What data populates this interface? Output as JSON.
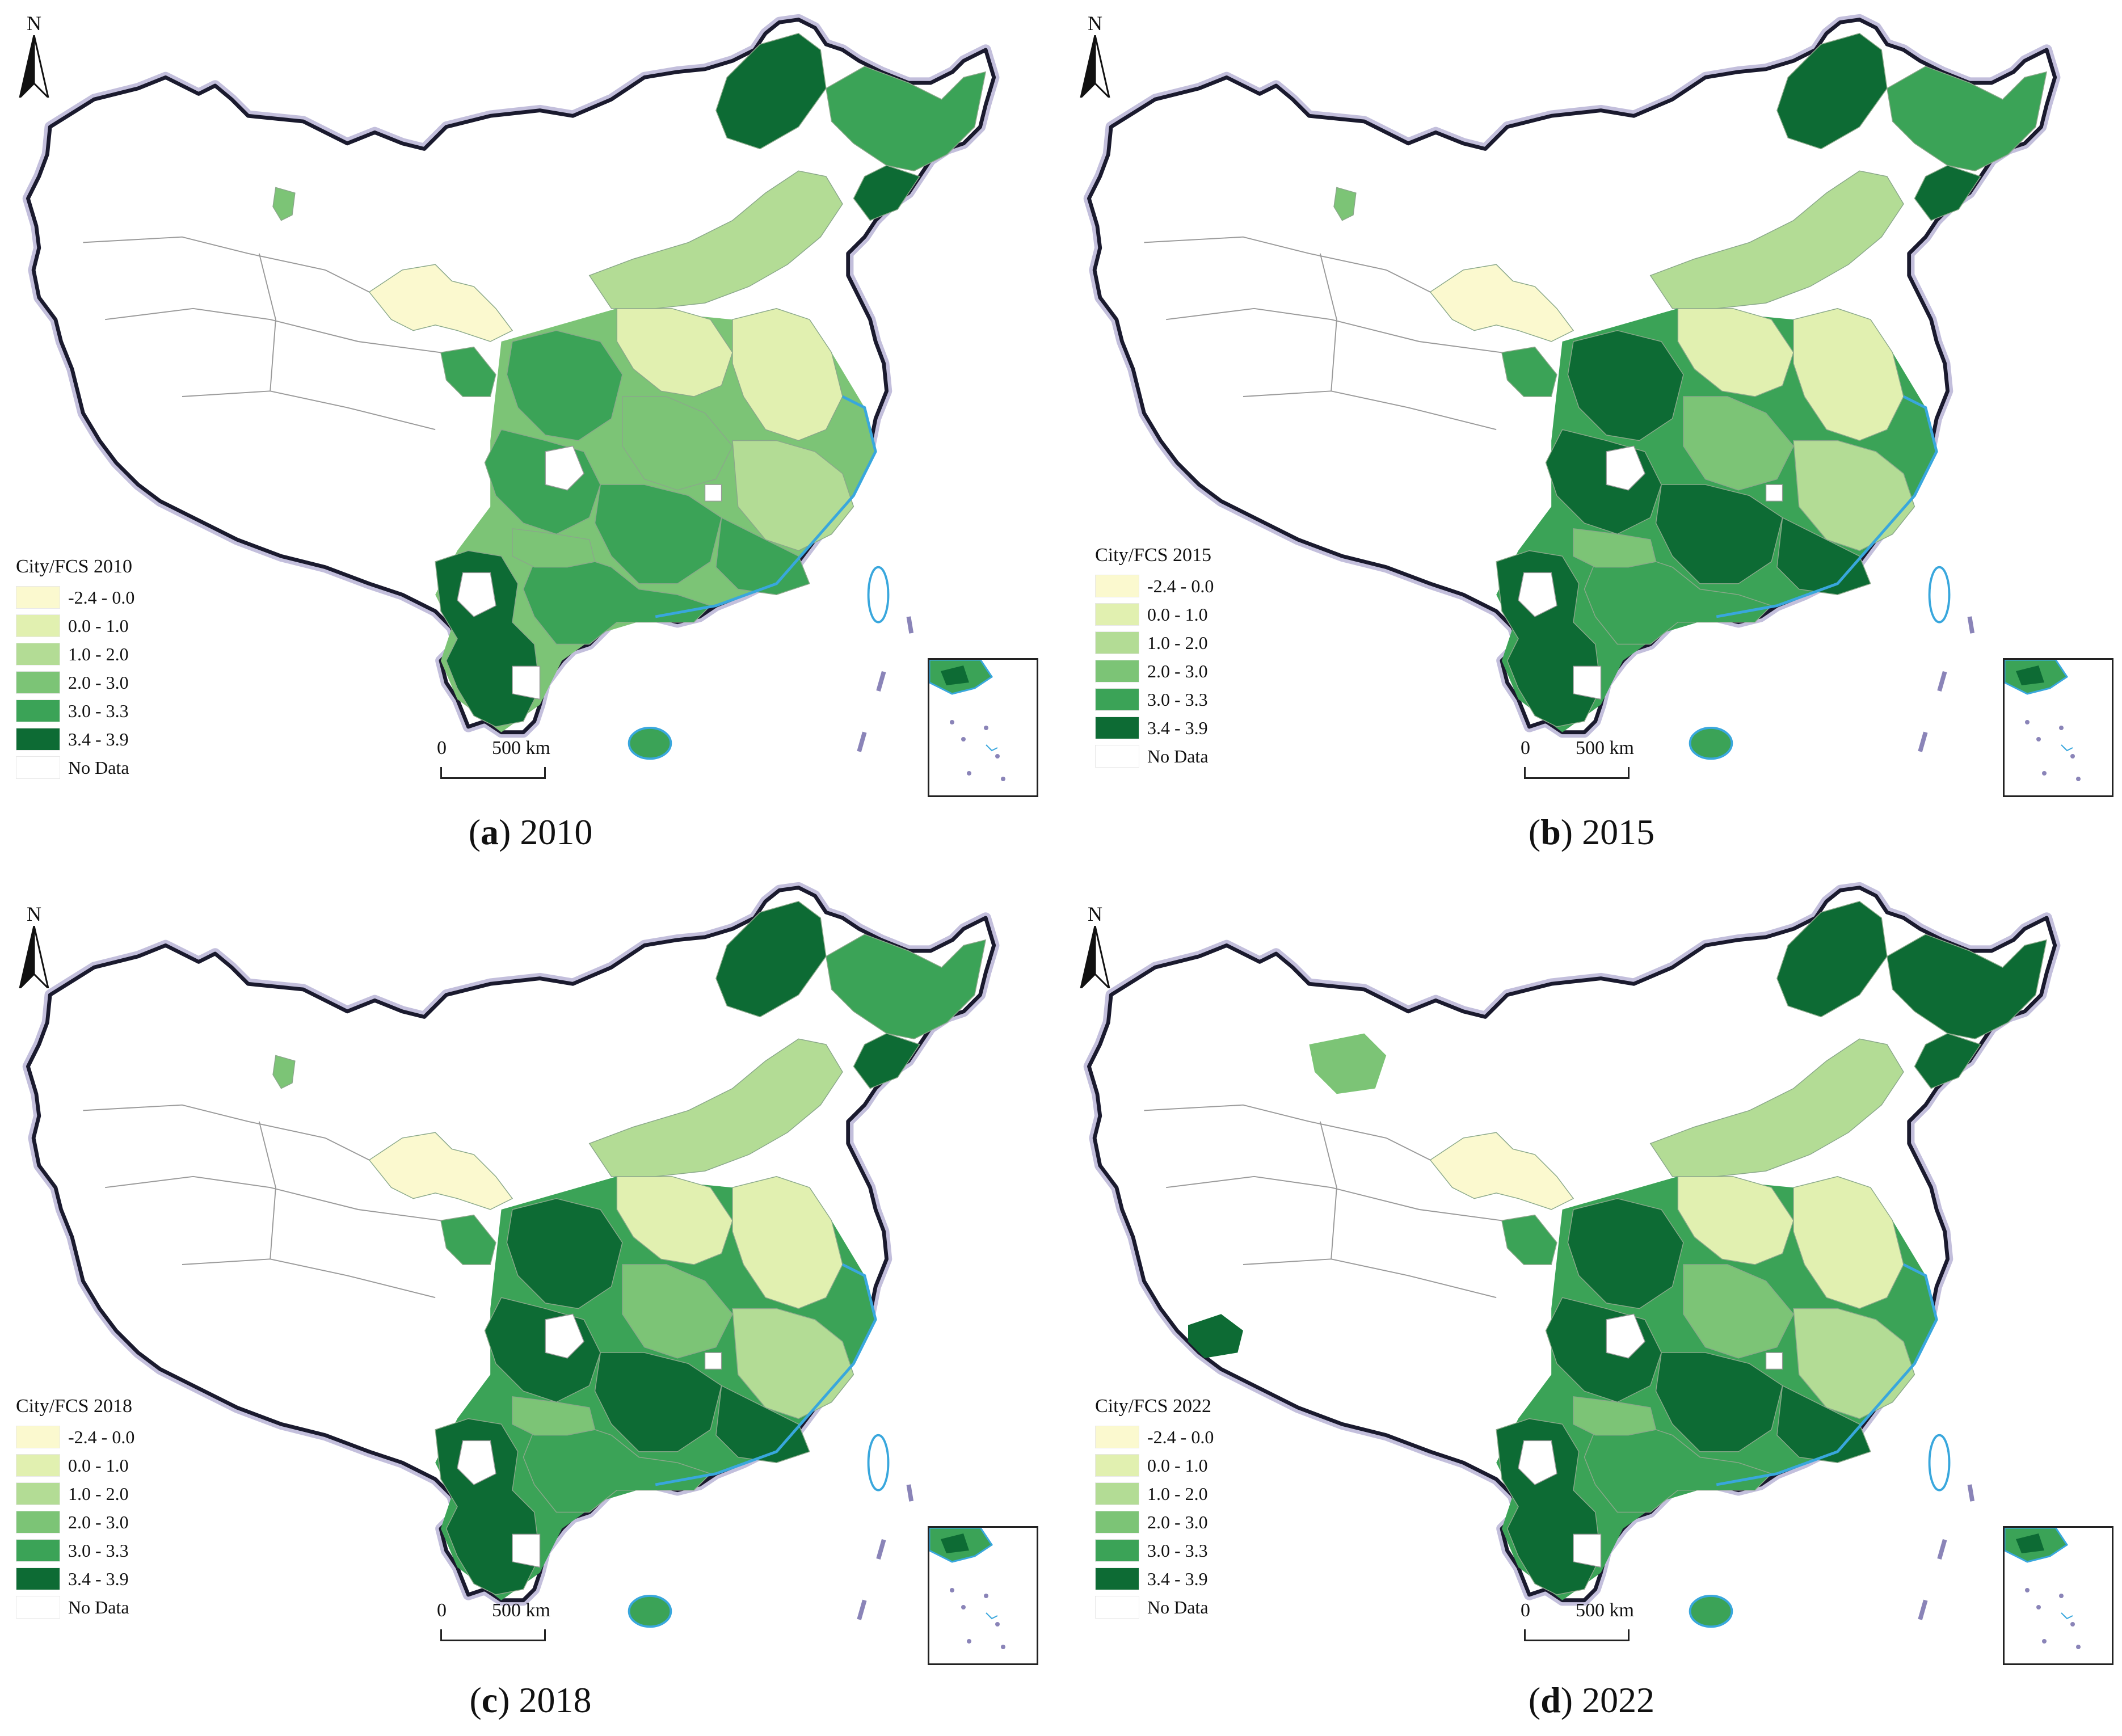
{
  "north_label": "N",
  "colors": {
    "class_1": "#fbf9cf",
    "class_2": "#e1f0b0",
    "class_3": "#b3dc95",
    "class_4": "#7cc476",
    "class_5": "#3ba357",
    "class_6": "#0d6b34",
    "no_data": "#ffffff",
    "coast": "#39a7dd",
    "border": "#1a1a2e"
  },
  "legend_classes": [
    "-2.4 - 0.0",
    "0.0 - 1.0",
    "1.0 - 2.0",
    "2.0 - 3.0",
    "3.0 - 3.3",
    "3.4 - 3.9",
    "No Data"
  ],
  "scale": {
    "zero": "0",
    "distance": "500",
    "unit": "km"
  },
  "panels": [
    {
      "letter": "a",
      "year": "2010",
      "legend_title": "City/FCS 2010",
      "dominant_class": 4,
      "northeast_class": 5,
      "extra_west": false
    },
    {
      "letter": "b",
      "year": "2015",
      "legend_title": "City/FCS 2015",
      "dominant_class": 5,
      "northeast_class": 5,
      "extra_west": false
    },
    {
      "letter": "c",
      "year": "2018",
      "legend_title": "City/FCS 2018",
      "dominant_class": 5,
      "northeast_class": 5,
      "extra_west": false
    },
    {
      "letter": "d",
      "year": "2022",
      "legend_title": "City/FCS 2022",
      "dominant_class": 5,
      "northeast_class": 6,
      "extra_west": true
    }
  ]
}
